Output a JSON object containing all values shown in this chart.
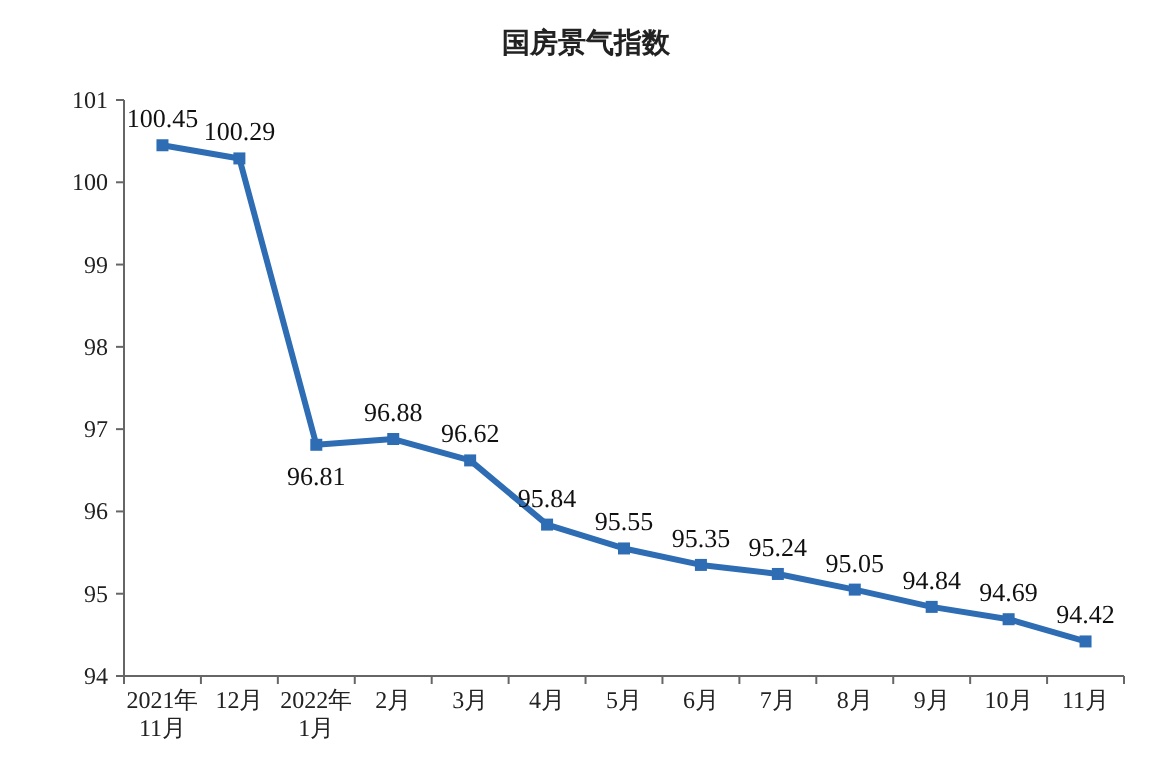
{
  "chart_data": {
    "type": "line",
    "title": "国房景气指数",
    "categories": [
      "2021年\n11月",
      "12月",
      "2022年\n1月",
      "2月",
      "3月",
      "4月",
      "5月",
      "6月",
      "7月",
      "8月",
      "9月",
      "10月",
      "11月"
    ],
    "values": [
      100.45,
      100.29,
      96.81,
      96.88,
      96.62,
      95.84,
      95.55,
      95.35,
      95.24,
      95.05,
      94.84,
      94.69,
      94.42
    ],
    "color": "#2e6db4",
    "ylim": [
      94,
      101
    ],
    "yticks": [
      94,
      95,
      96,
      97,
      98,
      99,
      100,
      101
    ],
    "data_labels": true,
    "marker": "square",
    "line_style": "solid"
  }
}
